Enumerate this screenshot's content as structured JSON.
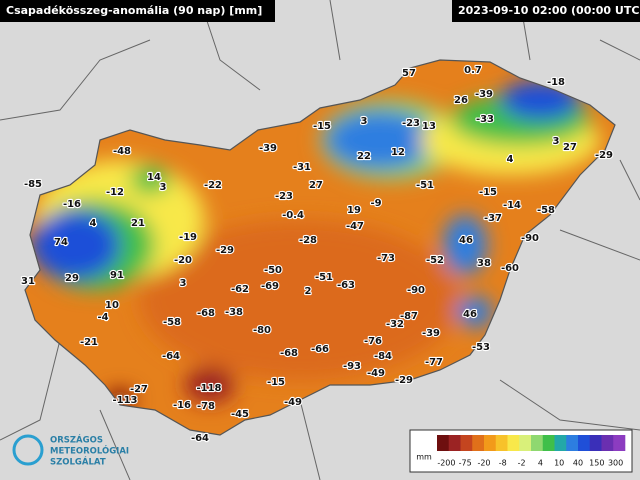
{
  "header": {
    "title": "Csapadékösszeg-anomália (90 nap) [mm]",
    "timestamp": "2023-09-10 02:00 (00:00 UTC)"
  },
  "stations": [
    57,
    0.7,
    -39,
    26,
    -18,
    -33,
    -15,
    3,
    -23,
    13,
    -48,
    -39,
    22,
    12,
    4,
    3,
    27,
    -29,
    14,
    -31,
    -85,
    -12,
    3,
    -22,
    27,
    -51,
    -15,
    -23,
    -16,
    19,
    -9,
    -14,
    -58,
    4,
    21,
    -0.4,
    -47,
    -37,
    -19,
    -28,
    74,
    46,
    -90,
    -29,
    -73,
    -52,
    -20,
    -50,
    38,
    -60,
    31,
    29,
    91,
    3,
    -51,
    -63,
    -62,
    -69,
    2,
    -90,
    10,
    -4,
    -58,
    -68,
    -38,
    -87,
    -32,
    46,
    -39,
    -80,
    -21,
    -76,
    -53,
    -64,
    -68,
    -66,
    -84,
    -93,
    -77,
    -49,
    -118,
    -27,
    -15,
    -29,
    -113,
    -16,
    -78,
    -49,
    -45,
    -64
  ],
  "legend": {
    "unit": "mm",
    "ticks": [
      -200,
      -75,
      -20,
      -8,
      -2,
      4,
      10,
      40,
      150,
      300
    ],
    "colors": [
      "#6e0f0f",
      "#9b2323",
      "#c4451f",
      "#e0701a",
      "#f29a1a",
      "#f7c22a",
      "#f8e84a",
      "#d9f07a",
      "#8fd870",
      "#3fbf4a",
      "#23a8a8",
      "#2d7ee0",
      "#1f4fd8",
      "#3a2fb8",
      "#6a2fb0",
      "#8c3cc0"
    ]
  },
  "logo": {
    "line1": "ORSZÁGOS",
    "line2": "METEOROLÓGIAI",
    "line3": "SZOLGÁLAT"
  }
}
